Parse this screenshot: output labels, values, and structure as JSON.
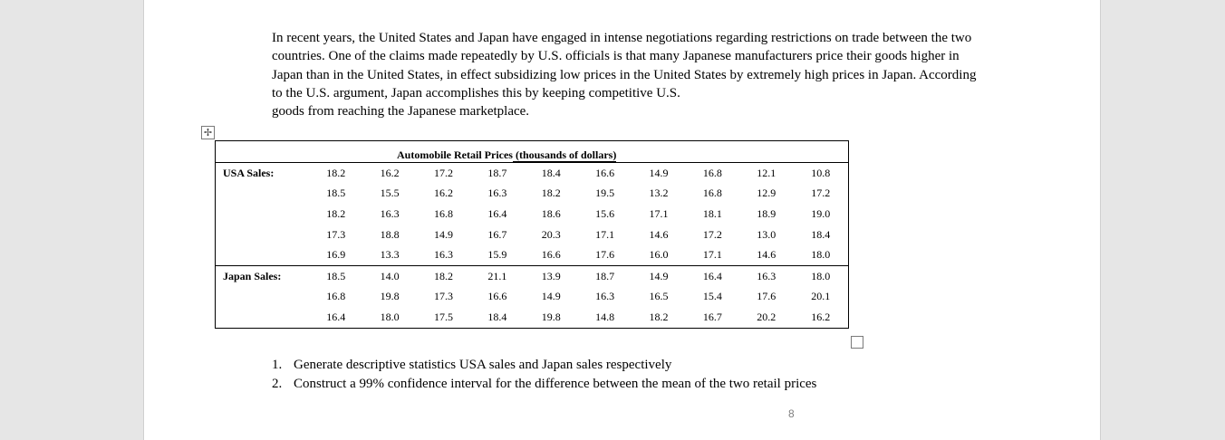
{
  "paragraph_lines": [
    "In recent years, the United States and Japan have engaged in intense negotiations regarding restrictions on trade between the two",
    "countries.  One of the claims made repeatedly by U.S. officials is that many Japanese manufacturers price their goods higher in",
    "Japan than in the United States, in effect subsidizing low prices in the United States by extremely high prices in Japan.  According",
    "to the U.S. argument, Japan accomplishes this by keeping competitive U.S.",
    "goods from reaching the Japanese marketplace."
  ],
  "table": {
    "caption_a": "Automobile Retail Prices",
    "caption_b": " (thousands of dollars)",
    "usa_label": "USA Sales:",
    "japan_label": "Japan Sales:",
    "usa_rows": [
      [
        "18.2",
        "16.2",
        "17.2",
        "18.7",
        "18.4",
        "16.6",
        "14.9",
        "16.8",
        "12.1",
        "10.8"
      ],
      [
        "18.5",
        "15.5",
        "16.2",
        "16.3",
        "18.2",
        "19.5",
        "13.2",
        "16.8",
        "12.9",
        "17.2"
      ],
      [
        "18.2",
        "16.3",
        "16.8",
        "16.4",
        "18.6",
        "15.6",
        "17.1",
        "18.1",
        "18.9",
        "19.0"
      ],
      [
        "17.3",
        "18.8",
        "14.9",
        "16.7",
        "20.3",
        "17.1",
        "14.6",
        "17.2",
        "13.0",
        "18.4"
      ],
      [
        "16.9",
        "13.3",
        "16.3",
        "15.9",
        "16.6",
        "17.6",
        "16.0",
        "17.1",
        "14.6",
        "18.0"
      ]
    ],
    "japan_rows": [
      [
        "18.5",
        "14.0",
        "18.2",
        "21.1",
        "13.9",
        "18.7",
        "14.9",
        "16.4",
        "16.3",
        "18.0"
      ],
      [
        "16.8",
        "19.8",
        "17.3",
        "16.6",
        "14.9",
        "16.3",
        "16.5",
        "15.4",
        "17.6",
        "20.1"
      ],
      [
        "16.4",
        "18.0",
        "17.5",
        "18.4",
        "19.8",
        "14.8",
        "18.2",
        "16.7",
        "20.2",
        "16.2"
      ]
    ]
  },
  "questions": [
    {
      "num": "1.",
      "text": "Generate descriptive statistics USA sales and Japan sales respectively"
    },
    {
      "num": "2.",
      "text": "Construct a 99% confidence interval for the difference between the mean of the two retail prices"
    }
  ],
  "page_number": "8",
  "icons": {
    "table_move": "move-cross-icon",
    "table_resize": "resize-square-icon"
  }
}
